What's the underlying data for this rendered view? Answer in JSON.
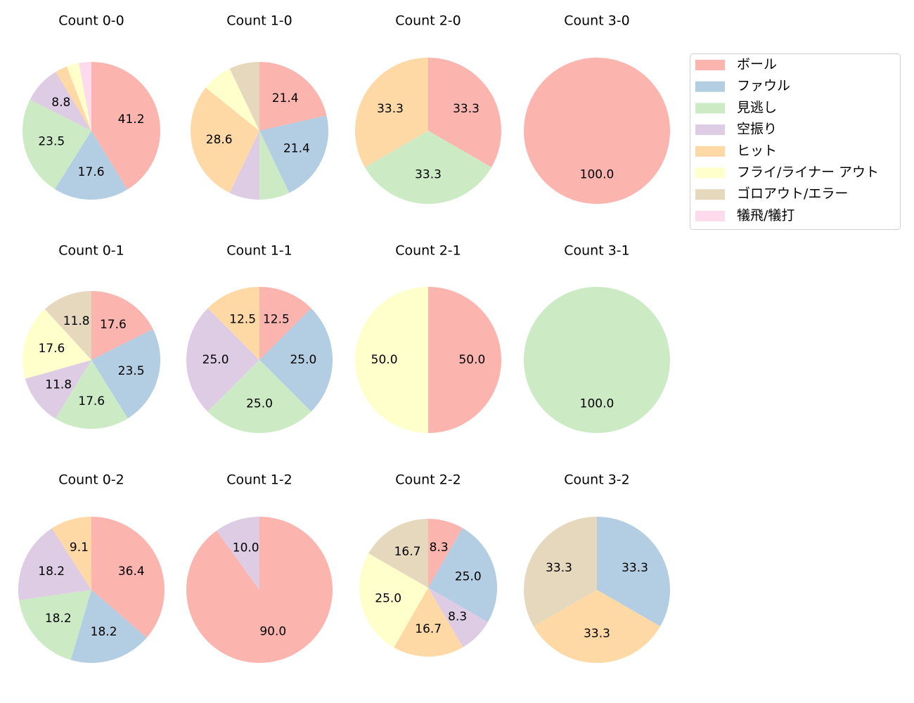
{
  "chart_data": {
    "type": "pie",
    "legend": {
      "placement": "top-right",
      "entries": [
        {
          "name": "ボール",
          "color": "#fbb4ae"
        },
        {
          "name": "ファウル",
          "color": "#b3cde3"
        },
        {
          "name": "見逃し",
          "color": "#ccebc5"
        },
        {
          "name": "空振り",
          "color": "#decbe4"
        },
        {
          "name": "ヒット",
          "color": "#fed9a6"
        },
        {
          "name": "フライ/ライナー アウト",
          "color": "#ffffcc"
        },
        {
          "name": "ゴロアウト/エラー",
          "color": "#e5d8bd"
        },
        {
          "name": "犠飛/犠打",
          "color": "#fddaec"
        }
      ]
    },
    "charts": [
      {
        "title": "Count 0-0",
        "slices": [
          {
            "category": "ボール",
            "value": 41.2,
            "label": "41.2"
          },
          {
            "category": "ファウル",
            "value": 17.6,
            "label": "17.6"
          },
          {
            "category": "見逃し",
            "value": 23.5,
            "label": "23.5"
          },
          {
            "category": "空振り",
            "value": 8.8,
            "label": "8.8"
          },
          {
            "category": "ヒット",
            "value": 2.9,
            "label": ""
          },
          {
            "category": "フライ/ライナー アウト",
            "value": 2.9,
            "label": ""
          },
          {
            "category": "犠飛/犠打",
            "value": 2.9,
            "label": ""
          }
        ]
      },
      {
        "title": "Count 1-0",
        "slices": [
          {
            "category": "ボール",
            "value": 21.4,
            "label": "21.4"
          },
          {
            "category": "ファウル",
            "value": 21.4,
            "label": "21.4"
          },
          {
            "category": "見逃し",
            "value": 7.1,
            "label": ""
          },
          {
            "category": "空振り",
            "value": 7.1,
            "label": ""
          },
          {
            "category": "ヒット",
            "value": 28.6,
            "label": "28.6"
          },
          {
            "category": "フライ/ライナー アウト",
            "value": 7.1,
            "label": ""
          },
          {
            "category": "ゴロアウト/エラー",
            "value": 7.1,
            "label": ""
          }
        ]
      },
      {
        "title": "Count 2-0",
        "slices": [
          {
            "category": "ボール",
            "value": 33.3,
            "label": "33.3"
          },
          {
            "category": "見逃し",
            "value": 33.3,
            "label": "33.3"
          },
          {
            "category": "ヒット",
            "value": 33.3,
            "label": "33.3"
          }
        ]
      },
      {
        "title": "Count 3-0",
        "slices": [
          {
            "category": "ボール",
            "value": 100.0,
            "label": "100.0"
          }
        ]
      },
      {
        "title": "Count 0-1",
        "slices": [
          {
            "category": "ボール",
            "value": 17.6,
            "label": "17.6"
          },
          {
            "category": "ファウル",
            "value": 23.5,
            "label": "23.5"
          },
          {
            "category": "見逃し",
            "value": 17.6,
            "label": "17.6"
          },
          {
            "category": "空振り",
            "value": 11.8,
            "label": "11.8"
          },
          {
            "category": "フライ/ライナー アウト",
            "value": 17.6,
            "label": "17.6"
          },
          {
            "category": "ゴロアウト/エラー",
            "value": 11.8,
            "label": "11.8"
          }
        ]
      },
      {
        "title": "Count 1-1",
        "slices": [
          {
            "category": "ボール",
            "value": 12.5,
            "label": "12.5"
          },
          {
            "category": "ファウル",
            "value": 25.0,
            "label": "25.0"
          },
          {
            "category": "見逃し",
            "value": 25.0,
            "label": "25.0"
          },
          {
            "category": "空振り",
            "value": 25.0,
            "label": "25.0"
          },
          {
            "category": "ヒット",
            "value": 12.5,
            "label": "12.5"
          }
        ]
      },
      {
        "title": "Count 2-1",
        "slices": [
          {
            "category": "ボール",
            "value": 50.0,
            "label": "50.0"
          },
          {
            "category": "フライ/ライナー アウト",
            "value": 50.0,
            "label": "50.0"
          }
        ]
      },
      {
        "title": "Count 3-1",
        "slices": [
          {
            "category": "見逃し",
            "value": 100.0,
            "label": "100.0"
          }
        ]
      },
      {
        "title": "Count 0-2",
        "slices": [
          {
            "category": "ボール",
            "value": 36.4,
            "label": "36.4"
          },
          {
            "category": "ファウル",
            "value": 18.2,
            "label": "18.2"
          },
          {
            "category": "見逃し",
            "value": 18.2,
            "label": "18.2"
          },
          {
            "category": "空振り",
            "value": 18.2,
            "label": "18.2"
          },
          {
            "category": "ヒット",
            "value": 9.1,
            "label": "9.1"
          }
        ]
      },
      {
        "title": "Count 1-2",
        "slices": [
          {
            "category": "ボール",
            "value": 90.0,
            "label": "90.0"
          },
          {
            "category": "空振り",
            "value": 10.0,
            "label": "10.0"
          }
        ]
      },
      {
        "title": "Count 2-2",
        "slices": [
          {
            "category": "ボール",
            "value": 8.3,
            "label": "8.3"
          },
          {
            "category": "ファウル",
            "value": 25.0,
            "label": "25.0"
          },
          {
            "category": "空振り",
            "value": 8.3,
            "label": "8.3"
          },
          {
            "category": "ヒット",
            "value": 16.7,
            "label": "16.7"
          },
          {
            "category": "フライ/ライナー アウト",
            "value": 25.0,
            "label": "25.0"
          },
          {
            "category": "ゴロアウト/エラー",
            "value": 16.7,
            "label": "16.7"
          }
        ]
      },
      {
        "title": "Count 3-2",
        "slices": [
          {
            "category": "ファウル",
            "value": 33.3,
            "label": "33.3"
          },
          {
            "category": "ヒット",
            "value": 33.3,
            "label": "33.3"
          },
          {
            "category": "ゴロアウト/エラー",
            "value": 33.3,
            "label": "33.3"
          }
        ]
      }
    ]
  }
}
